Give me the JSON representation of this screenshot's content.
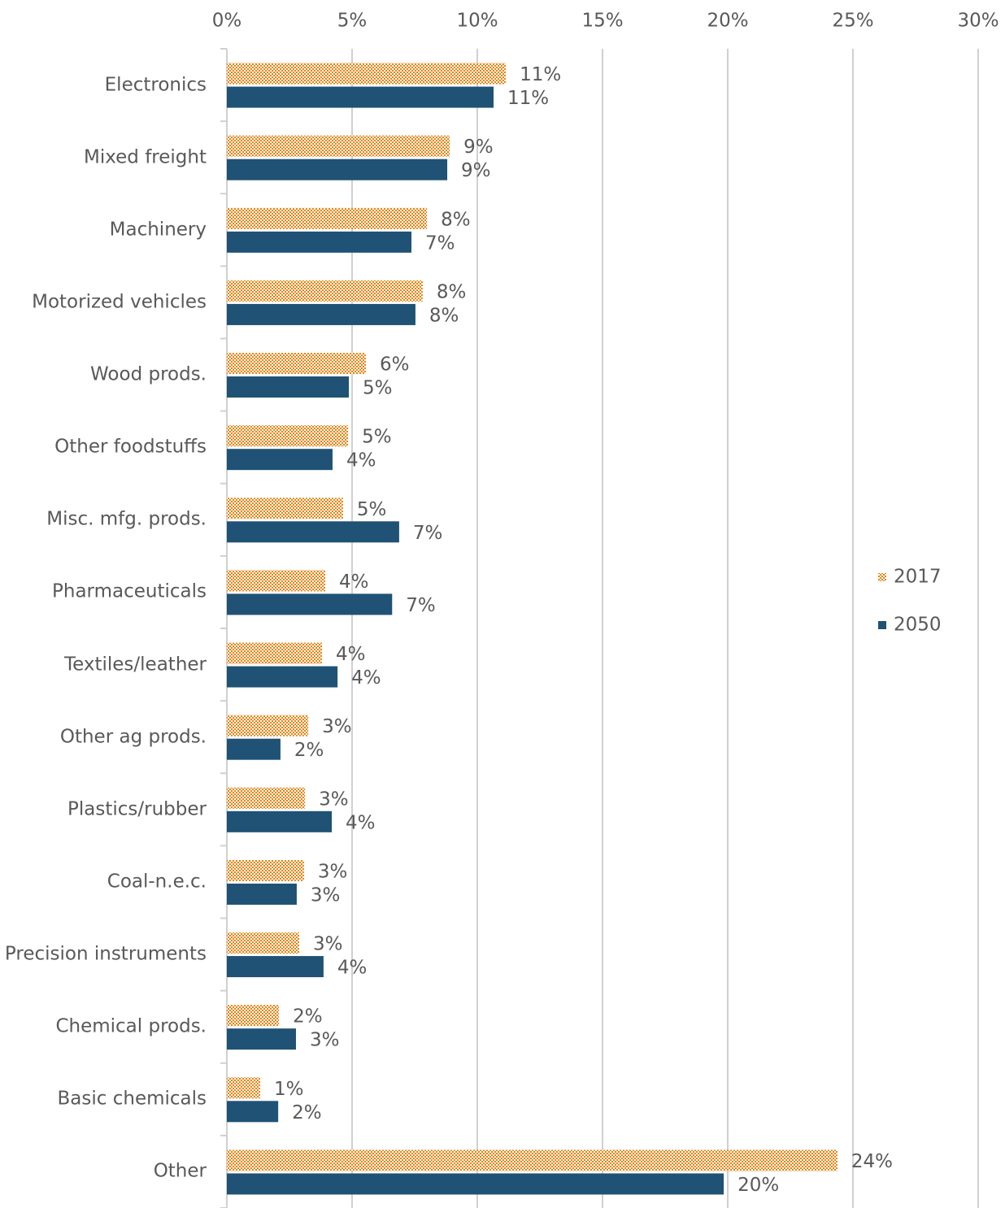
{
  "chart_data": {
    "type": "bar",
    "orientation": "horizontal",
    "categories": [
      "Electronics",
      "Mixed freight",
      "Machinery",
      "Motorized vehicles",
      "Wood prods.",
      "Other foodstuffs",
      "Misc. mfg. prods.",
      "Pharmaceuticals",
      "Textiles/leather",
      "Other ag prods.",
      "Plastics/rubber",
      "Coal-n.e.c.",
      "Precision instruments",
      "Chemical prods.",
      "Basic chemicals",
      "Other"
    ],
    "series": [
      {
        "name": "2017",
        "color": "#e8820c",
        "pattern": "checker",
        "values": [
          11.14,
          8.9,
          7.99,
          7.82,
          5.55,
          4.84,
          4.64,
          3.93,
          3.8,
          3.25,
          3.12,
          3.08,
          2.89,
          2.08,
          1.33,
          24.38
        ],
        "value_labels": [
          "11%",
          "9%",
          "8%",
          "8%",
          "6%",
          "5%",
          "5%",
          "4%",
          "4%",
          "3%",
          "3%",
          "3%",
          "3%",
          "2%",
          "1%",
          "24%"
        ]
      },
      {
        "name": "2050",
        "color": "#1f5274",
        "values": [
          10.65,
          8.8,
          7.37,
          7.53,
          4.87,
          4.22,
          6.88,
          6.6,
          4.42,
          2.14,
          4.19,
          2.79,
          3.86,
          2.76,
          2.05,
          19.84
        ],
        "value_labels": [
          "11%",
          "9%",
          "7%",
          "8%",
          "5%",
          "4%",
          "7%",
          "7%",
          "4%",
          "2%",
          "4%",
          "3%",
          "4%",
          "3%",
          "2%",
          "20%"
        ]
      }
    ],
    "xlim": [
      0,
      30
    ],
    "xticks": [
      {
        "value": 0,
        "label": "0%"
      },
      {
        "value": 5,
        "label": "5%"
      },
      {
        "value": 10,
        "label": "10%"
      },
      {
        "value": 15,
        "label": "15%"
      },
      {
        "value": 20,
        "label": "20%"
      },
      {
        "value": 25,
        "label": "25%"
      },
      {
        "value": 30,
        "label": "30%"
      }
    ],
    "grid": true,
    "legend": "right"
  }
}
